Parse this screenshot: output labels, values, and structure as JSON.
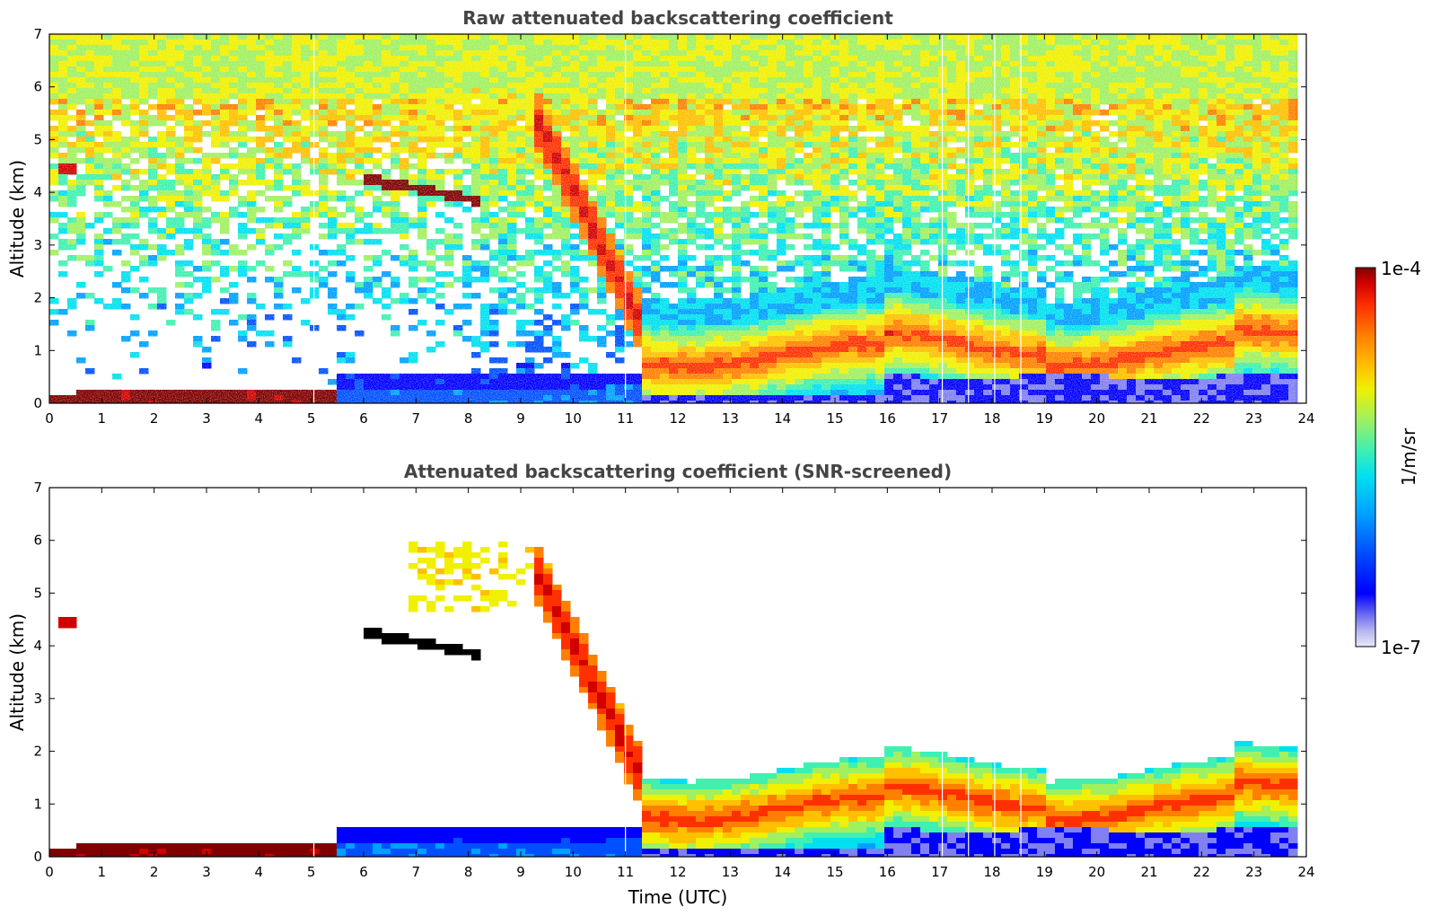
{
  "chart_data": [
    {
      "type": "heatmap",
      "title": "Raw attenuated backscattering coefficient",
      "xlabel": "",
      "ylabel": "Altitude (km)",
      "xlim": [
        0,
        24
      ],
      "ylim": [
        0,
        7
      ],
      "xticks": [
        "0",
        "1",
        "2",
        "3",
        "4",
        "5",
        "6",
        "7",
        "8",
        "9",
        "10",
        "11",
        "12",
        "13",
        "14",
        "15",
        "16",
        "17",
        "18",
        "19",
        "20",
        "21",
        "22",
        "23",
        "24"
      ],
      "yticks": [
        "0",
        "1",
        "2",
        "3",
        "4",
        "5",
        "6",
        "7"
      ],
      "variant": "raw",
      "features": [
        {
          "name": "surface aerosol layer",
          "x_range": [
            0,
            5.5
          ],
          "altitude_km": [
            0.1,
            0.3
          ]
        },
        {
          "name": "elevated cloud",
          "x_range": [
            6.0,
            8.2
          ],
          "altitude_km": [
            3.8,
            4.3
          ]
        },
        {
          "name": "small cloud",
          "x_range": [
            0.25,
            0.55
          ],
          "altitude_km": [
            4.3,
            4.5
          ]
        },
        {
          "name": "descending cloud / precipitation",
          "x_range": [
            9.5,
            12
          ],
          "altitude_km": [
            0.5,
            5.5
          ]
        },
        {
          "name": "boundary layer",
          "x_range": [
            11.5,
            23.8
          ],
          "altitude_km": [
            0.5,
            1.5
          ]
        }
      ]
    },
    {
      "type": "heatmap",
      "title": "Attenuated backscattering coefficient (SNR-screened)",
      "xlabel": "Time (UTC)",
      "ylabel": "Altitude (km)",
      "xlim": [
        0,
        24
      ],
      "ylim": [
        0,
        7
      ],
      "xticks": [
        "0",
        "1",
        "2",
        "3",
        "4",
        "5",
        "6",
        "7",
        "8",
        "9",
        "10",
        "11",
        "12",
        "13",
        "14",
        "15",
        "16",
        "17",
        "18",
        "19",
        "20",
        "21",
        "22",
        "23",
        "24"
      ],
      "yticks": [
        "0",
        "1",
        "2",
        "3",
        "4",
        "5",
        "6",
        "7"
      ],
      "variant": "screened"
    }
  ],
  "colorbar": {
    "min_label": "1e-7",
    "max_label": "1e-4",
    "unit": "1/m/sr",
    "scale": "log",
    "colors": [
      "#e8e8f8",
      "#b8b8f0",
      "#8080f0",
      "#0000ff",
      "#0050ff",
      "#00a0ff",
      "#00e0f0",
      "#40f0b0",
      "#a0f060",
      "#f0f000",
      "#ffc000",
      "#ff8000",
      "#ff3000",
      "#d00000",
      "#800000"
    ]
  }
}
